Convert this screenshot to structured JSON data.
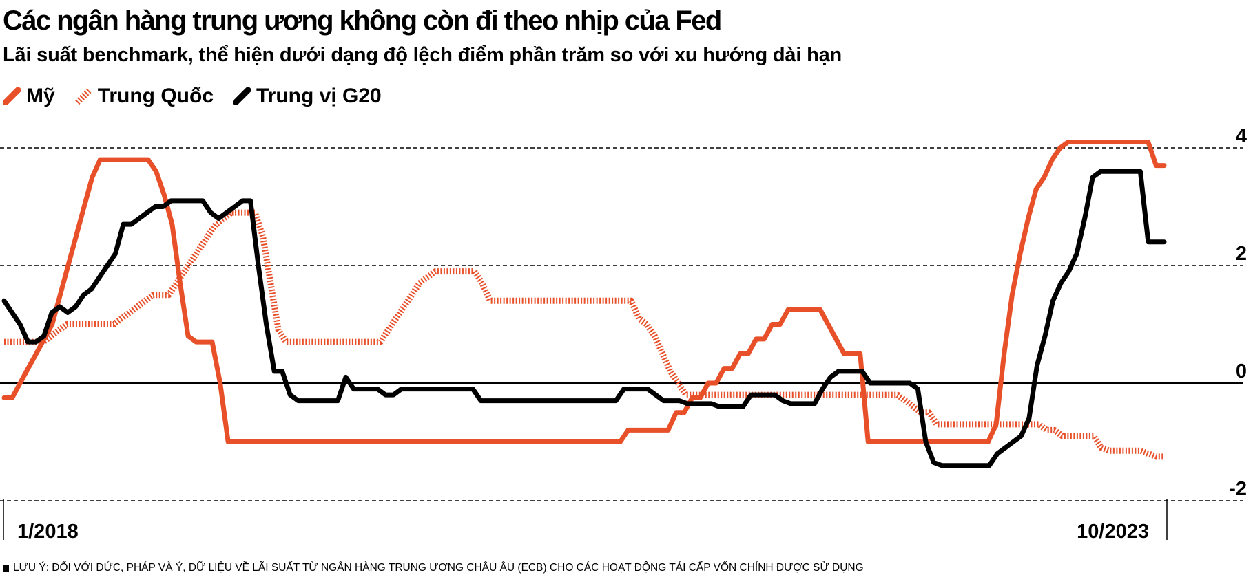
{
  "title": "Các ngân hàng trung ương không còn đi theo nhịp của Fed",
  "subtitle": "Lãi suất benchmark, thể hiện dưới dạng độ lệch điểm phần trăm so với xu hướng dài hạn",
  "note": "LƯU Ý: ĐỐI VỚI ĐỨC, PHÁP VÀ Ý, DỮ LIỆU VỀ LÃI SUẤT TỪ NGÂN HÀNG TRUNG ƯƠNG CHÂU ÂU (ECB) CHO CÁC HOẠT ĐỘNG TÁI CẤP VỐN CHÍNH ĐƯỢC SỬ DỤNG",
  "colors": {
    "us": "#e8502a",
    "china": "#e8502a",
    "g20": "#000000"
  },
  "chart_data": {
    "type": "line",
    "title": "Các ngân hàng trung ương không còn đi theo nhịp của Fed",
    "subtitle": "Lãi suất benchmark, thể hiện dưới dạng độ lệch điểm phần trăm so với xu hướng dài hạn",
    "xlabel": "",
    "ylabel": "",
    "x_tick_labels": [
      "1/2018",
      "10/2023"
    ],
    "y_ticks": [
      4,
      2,
      0,
      -2
    ],
    "ylim": [
      -2.1,
      4.3
    ],
    "grid": "horizontal dashed",
    "legend_position": "top-left",
    "series": [
      {
        "name": "Mỹ",
        "style": "solid",
        "color": "#e8502a",
        "values": [
          -0.25,
          -0.25,
          0.0,
          0.25,
          0.5,
          0.75,
          1.0,
          1.5,
          2.0,
          2.5,
          3.0,
          3.5,
          3.8,
          3.8,
          3.8,
          3.8,
          3.8,
          3.8,
          3.8,
          3.6,
          3.2,
          2.7,
          1.7,
          0.8,
          0.7,
          0.7,
          0.7,
          0.0,
          -1.0,
          -1.0,
          -1.0,
          -1.0,
          -1.0,
          -1.0,
          -1.0,
          -1.0,
          -1.0,
          -1.0,
          -1.0,
          -1.0,
          -1.0,
          -1.0,
          -1.0,
          -1.0,
          -1.0,
          -1.0,
          -1.0,
          -1.0,
          -1.0,
          -1.0,
          -1.0,
          -1.0,
          -1.0,
          -1.0,
          -1.0,
          -1.0,
          -1.0,
          -1.0,
          -1.0,
          -1.0,
          -1.0,
          -1.0,
          -1.0,
          -1.0,
          -1.0,
          -1.0,
          -1.0,
          -1.0,
          -1.0,
          -1.0,
          -1.0,
          -1.0,
          -1.0,
          -1.0,
          -1.0,
          -1.0,
          -1.0,
          -1.0,
          -0.8,
          -0.8,
          -0.8,
          -0.8,
          -0.8,
          -0.8,
          -0.5,
          -0.5,
          -0.25,
          -0.25,
          0.0,
          0.0,
          0.25,
          0.25,
          0.5,
          0.5,
          0.75,
          0.75,
          1.0,
          1.0,
          1.25,
          1.25,
          1.25,
          1.25,
          1.25,
          1.0,
          0.75,
          0.5,
          0.5,
          0.5,
          -1.0,
          -1.0,
          -1.0,
          -1.0,
          -1.0,
          -1.0,
          -1.0,
          -1.0,
          -1.0,
          -1.0,
          -1.0,
          -1.0,
          -1.0,
          -1.0,
          -1.0,
          -1.0,
          -0.7,
          0.5,
          1.5,
          2.2,
          2.8,
          3.3,
          3.5,
          3.8,
          4.0,
          4.1,
          4.1,
          4.1,
          4.1,
          4.1,
          4.1,
          4.1,
          4.1,
          4.1,
          4.1,
          4.1,
          3.7,
          3.7
        ]
      },
      {
        "name": "Trung Quốc",
        "style": "hatched",
        "color": "#e8502a",
        "values": [
          0.7,
          0.7,
          0.7,
          0.7,
          0.7,
          0.7,
          0.8,
          0.9,
          1.0,
          1.0,
          1.0,
          1.0,
          1.0,
          1.0,
          1.0,
          1.1,
          1.2,
          1.3,
          1.4,
          1.5,
          1.5,
          1.5,
          1.7,
          1.9,
          2.1,
          2.3,
          2.5,
          2.7,
          2.8,
          2.9,
          2.9,
          2.9,
          2.9,
          2.5,
          1.7,
          0.9,
          0.7,
          0.7,
          0.7,
          0.7,
          0.7,
          0.7,
          0.7,
          0.7,
          0.7,
          0.7,
          0.7,
          0.7,
          0.7,
          0.9,
          1.1,
          1.3,
          1.5,
          1.7,
          1.8,
          1.9,
          1.9,
          1.9,
          1.9,
          1.9,
          1.9,
          1.7,
          1.4,
          1.4,
          1.4,
          1.4,
          1.4,
          1.4,
          1.4,
          1.4,
          1.4,
          1.4,
          1.4,
          1.4,
          1.4,
          1.4,
          1.4,
          1.4,
          1.4,
          1.4,
          1.4,
          1.1,
          1.0,
          0.8,
          0.5,
          0.2,
          0.0,
          -0.2,
          -0.2,
          -0.2,
          -0.2,
          -0.2,
          -0.2,
          -0.2,
          -0.2,
          -0.2,
          -0.2,
          -0.2,
          -0.2,
          -0.2,
          -0.2,
          -0.2,
          -0.2,
          -0.2,
          -0.2,
          -0.2,
          -0.2,
          -0.2,
          -0.2,
          -0.2,
          -0.2,
          -0.2,
          -0.2,
          -0.2,
          -0.2,
          -0.3,
          -0.4,
          -0.5,
          -0.5,
          -0.7,
          -0.7,
          -0.7,
          -0.7,
          -0.7,
          -0.7,
          -0.7,
          -0.7,
          -0.7,
          -0.7,
          -0.7,
          -0.7,
          -0.7,
          -0.7,
          -0.8,
          -0.8,
          -0.9,
          -0.9,
          -0.9,
          -0.9,
          -0.9,
          -1.1,
          -1.15,
          -1.15,
          -1.15,
          -1.15,
          -1.15,
          -1.2,
          -1.25,
          -1.25
        ]
      },
      {
        "name": "Trung vị G20",
        "style": "solid",
        "color": "#000000",
        "values": [
          1.4,
          1.2,
          1.0,
          0.7,
          0.7,
          0.8,
          1.2,
          1.3,
          1.2,
          1.3,
          1.5,
          1.6,
          1.8,
          2.0,
          2.2,
          2.7,
          2.7,
          2.8,
          2.9,
          3.0,
          3.0,
          3.1,
          3.1,
          3.1,
          3.1,
          3.1,
          2.9,
          2.8,
          2.9,
          3.0,
          3.1,
          3.1,
          2.0,
          1.0,
          0.2,
          0.2,
          -0.2,
          -0.3,
          -0.3,
          -0.3,
          -0.3,
          -0.3,
          -0.3,
          0.1,
          -0.1,
          -0.1,
          -0.1,
          -0.1,
          -0.2,
          -0.2,
          -0.1,
          -0.1,
          -0.1,
          -0.1,
          -0.1,
          -0.1,
          -0.1,
          -0.1,
          -0.1,
          -0.1,
          -0.3,
          -0.3,
          -0.3,
          -0.3,
          -0.3,
          -0.3,
          -0.3,
          -0.3,
          -0.3,
          -0.3,
          -0.3,
          -0.3,
          -0.3,
          -0.3,
          -0.3,
          -0.3,
          -0.3,
          -0.3,
          -0.1,
          -0.1,
          -0.1,
          -0.1,
          -0.2,
          -0.3,
          -0.3,
          -0.3,
          -0.35,
          -0.35,
          -0.35,
          -0.35,
          -0.4,
          -0.4,
          -0.4,
          -0.4,
          -0.2,
          -0.2,
          -0.2,
          -0.2,
          -0.3,
          -0.35,
          -0.35,
          -0.35,
          -0.35,
          -0.1,
          0.1,
          0.2,
          0.2,
          0.2,
          0.2,
          0.0,
          0.0,
          0.0,
          0.0,
          0.0,
          0.0,
          -0.1,
          -1.0,
          -1.35,
          -1.4,
          -1.4,
          -1.4,
          -1.4,
          -1.4,
          -1.4,
          -1.4,
          -1.2,
          -1.1,
          -1.0,
          -0.9,
          -0.6,
          0.3,
          0.8,
          1.4,
          1.7,
          1.9,
          2.2,
          2.8,
          3.5,
          3.6,
          3.6,
          3.6,
          3.6,
          3.6,
          3.6,
          2.4,
          2.4,
          2.4
        ]
      }
    ]
  }
}
